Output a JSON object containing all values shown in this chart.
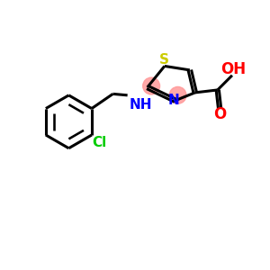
{
  "background_color": "#ffffff",
  "atom_colors": {
    "S": "#cccc00",
    "N": "#0000ff",
    "O": "#ff0000",
    "Cl": "#00cc00",
    "C": "#000000",
    "H": "#000000"
  },
  "bond_color": "#000000",
  "highlight_color": "#ff9999",
  "line_width": 2.2,
  "font_size": 11
}
